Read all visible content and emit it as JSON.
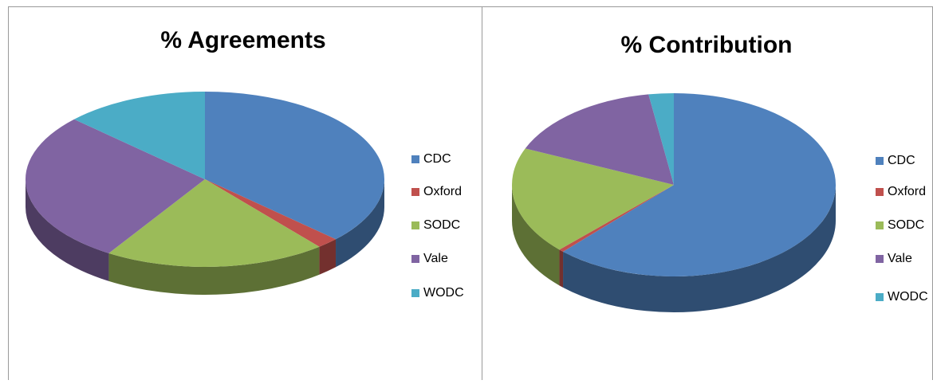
{
  "chart_data": [
    {
      "type": "pie",
      "title": "% Agreements",
      "categories": [
        "CDC",
        "Oxford",
        "SODC",
        "Vale",
        "WODC"
      ],
      "values": [
        37,
        2,
        20,
        28,
        13
      ],
      "colors": [
        "#4f81bd",
        "#c0504d",
        "#9bbb59",
        "#8064a2",
        "#4bacc6"
      ]
    },
    {
      "type": "pie",
      "title": "% Contribution",
      "categories": [
        "CDC",
        "Oxford",
        "SODC",
        "Vale",
        "WODC"
      ],
      "values": [
        62,
        0.5,
        19,
        16,
        2.5
      ],
      "colors": [
        "#4f81bd",
        "#c0504d",
        "#9bbb59",
        "#8064a2",
        "#4bacc6"
      ]
    }
  ]
}
